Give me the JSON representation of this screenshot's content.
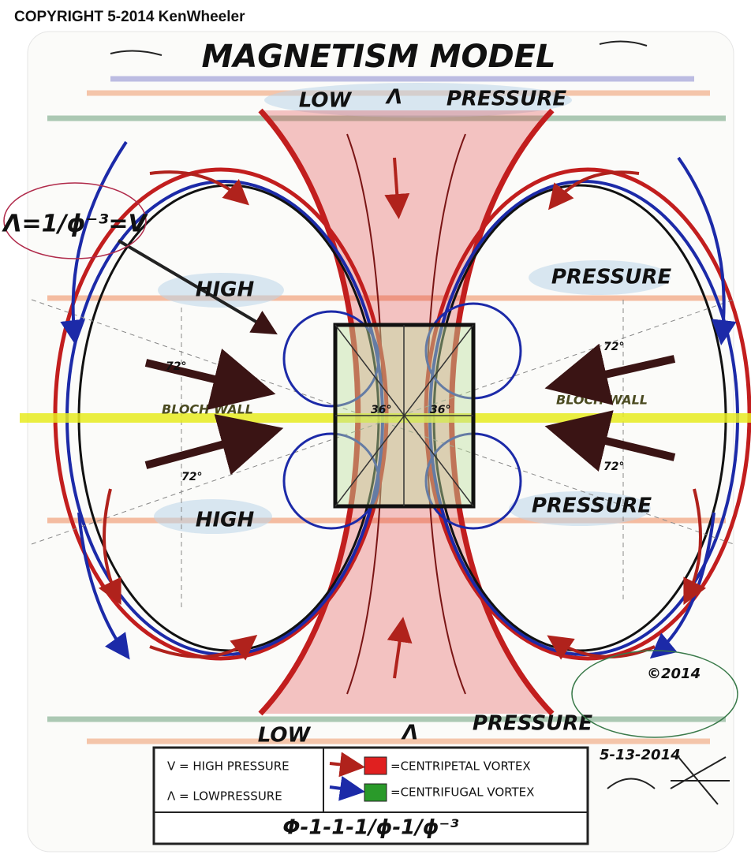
{
  "copyright": "COPYRIGHT 5-2014 KenWheeler",
  "title": "MAGNETISM MODEL",
  "top_pressure": {
    "low": "LOW",
    "symbol": "Λ",
    "pressure": "PRESSURE"
  },
  "bottom_pressure": {
    "low": "LOW",
    "symbol": "Λ",
    "pressure": "PRESSURE"
  },
  "formula": "Λ=1/ϕ⁻³=V",
  "regions": [
    "HIGH",
    "HIGH",
    "PRESSURE",
    "PRESSURE"
  ],
  "bloch_wall": [
    "BLOCH WALL",
    "BLOCH WALL"
  ],
  "angles": [
    "72°",
    "72°",
    "72°",
    "72°",
    "36°",
    "36°"
  ],
  "legend": {
    "high": "V = HIGH PRESSURE",
    "low": "Λ = LOWPRESSURE",
    "centripetal": "=CENTRIPETAL VORTEX",
    "centrifugal": "=CENTRIFUGAL VORTEX",
    "equation": "Φ-1-1-1/ϕ-1/ϕ⁻³"
  },
  "signature": {
    "copyright": "©2014",
    "date": "5-13-2014"
  }
}
